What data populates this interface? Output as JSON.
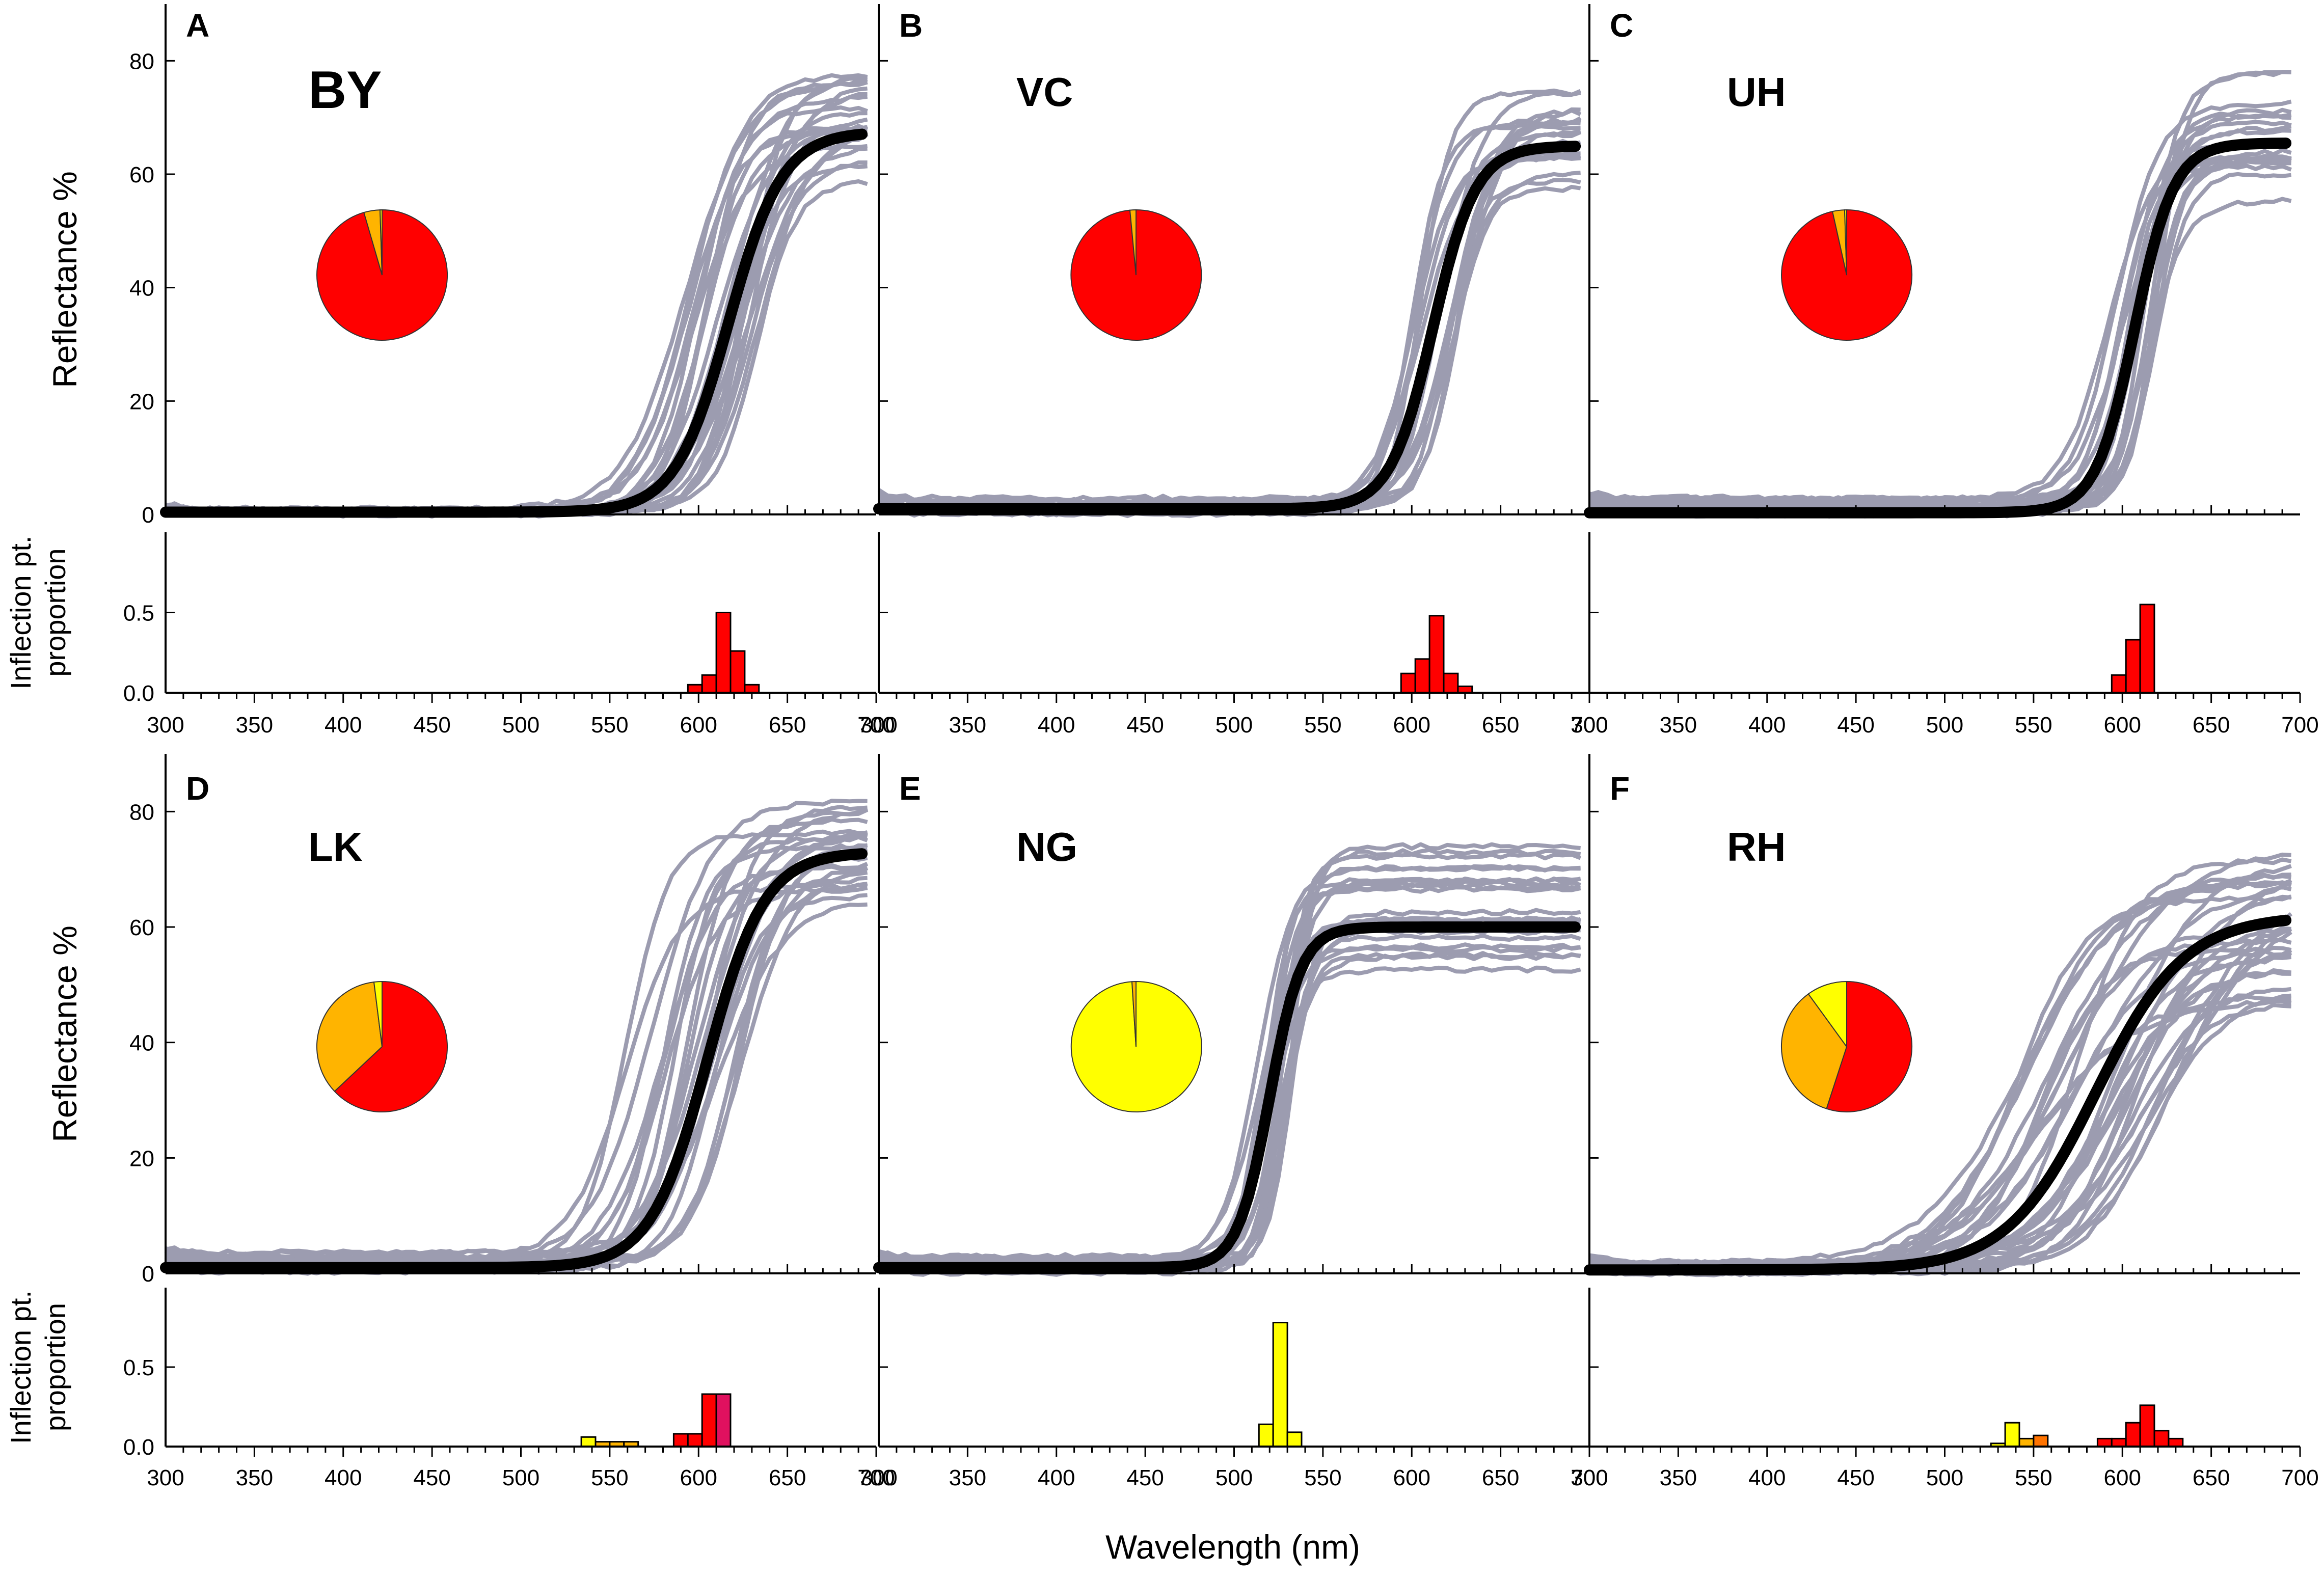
{
  "chart_data": {
    "type": "line",
    "xlabel": "Wavelength (nm)",
    "x_ticks": [
      300,
      350,
      400,
      450,
      500,
      550,
      600,
      650,
      700
    ],
    "xlim": [
      300,
      700
    ],
    "top_ylabel": "Reflectance %",
    "top_ylim": [
      0,
      90
    ],
    "top_yticks": [
      0,
      20,
      40,
      60,
      80
    ],
    "bottom_ylabel_lines": [
      "Inflection pt.",
      "proportion"
    ],
    "bottom_ylim": [
      0,
      1.0
    ],
    "bottom_yticks_labels": [
      "0.0",
      "0.5"
    ],
    "bottom_yticks_values": [
      0,
      0.5
    ],
    "colors": {
      "red": "#ff0000",
      "orange": "#ffb400",
      "yellow": "#ffff00",
      "deep_orange": "#ff7300",
      "pink": "#e0115f",
      "mean_line": "#000000",
      "individual_line": "#9c9cb0"
    },
    "panels": [
      {
        "letter": "A",
        "population": "BY",
        "label_size": "large",
        "mean": {
          "midpoint": 617,
          "scale": 15,
          "min": 0.4,
          "max": 67.5
        },
        "individuals": {
          "count": 22,
          "mid_range": [
            590,
            635
          ],
          "max_range": [
            58,
            78
          ],
          "min_range": [
            0,
            1
          ]
        },
        "pie": [
          {
            "value": 0.955,
            "color": "red"
          },
          {
            "value": 0.04,
            "color": "orange"
          },
          {
            "value": 0.005,
            "color": "yellow"
          }
        ],
        "histogram": [
          {
            "x": 594,
            "value": 0.05,
            "color": "red"
          },
          {
            "x": 602,
            "value": 0.11,
            "color": "red"
          },
          {
            "x": 610,
            "value": 0.5,
            "color": "red"
          },
          {
            "x": 618,
            "value": 0.26,
            "color": "red"
          },
          {
            "x": 626,
            "value": 0.05,
            "color": "red"
          }
        ]
      },
      {
        "letter": "B",
        "population": "VC",
        "label_size": "normal",
        "mean": {
          "midpoint": 612,
          "scale": 12,
          "min": 1.0,
          "max": 65
        },
        "individuals": {
          "count": 18,
          "mid_range": [
            595,
            628
          ],
          "max_range": [
            56,
            75
          ],
          "min_range": [
            0,
            3
          ]
        },
        "pie": [
          {
            "value": 0.985,
            "color": "red"
          },
          {
            "value": 0.015,
            "color": "orange"
          }
        ],
        "histogram": [
          {
            "x": 594,
            "value": 0.12,
            "color": "red"
          },
          {
            "x": 602,
            "value": 0.21,
            "color": "red"
          },
          {
            "x": 610,
            "value": 0.48,
            "color": "red"
          },
          {
            "x": 618,
            "value": 0.12,
            "color": "red"
          },
          {
            "x": 626,
            "value": 0.04,
            "color": "red"
          }
        ]
      },
      {
        "letter": "C",
        "population": "UH",
        "label_size": "normal",
        "mean": {
          "midpoint": 607,
          "scale": 11,
          "min": 0.3,
          "max": 65.5
        },
        "individuals": {
          "count": 20,
          "mid_range": [
            592,
            622
          ],
          "max_range": [
            55,
            79
          ],
          "min_range": [
            0,
            3
          ]
        },
        "pie": [
          {
            "value": 0.965,
            "color": "red"
          },
          {
            "value": 0.03,
            "color": "orange"
          },
          {
            "value": 0.005,
            "color": "yellow"
          }
        ],
        "histogram": [
          {
            "x": 594,
            "value": 0.11,
            "color": "red"
          },
          {
            "x": 602,
            "value": 0.33,
            "color": "red"
          },
          {
            "x": 610,
            "value": 0.55,
            "color": "red"
          }
        ]
      },
      {
        "letter": "D",
        "population": "LK",
        "label_size": "normal",
        "mean": {
          "midpoint": 605,
          "scale": 16,
          "min": 1.0,
          "max": 73
        },
        "individuals": {
          "count": 24,
          "mid_range": [
            558,
            625
          ],
          "max_range": [
            64,
            82
          ],
          "min_range": [
            0,
            4
          ]
        },
        "pie": [
          {
            "value": 0.63,
            "color": "red"
          },
          {
            "value": 0.35,
            "color": "orange"
          },
          {
            "value": 0.02,
            "color": "yellow"
          }
        ],
        "histogram": [
          {
            "x": 534,
            "value": 0.06,
            "color": "yellow"
          },
          {
            "x": 542,
            "value": 0.03,
            "color": "orange"
          },
          {
            "x": 550,
            "value": 0.03,
            "color": "orange"
          },
          {
            "x": 558,
            "value": 0.03,
            "color": "orange"
          },
          {
            "x": 586,
            "value": 0.08,
            "color": "red"
          },
          {
            "x": 594,
            "value": 0.08,
            "color": "red"
          },
          {
            "x": 602,
            "value": 0.33,
            "color": "red"
          },
          {
            "x": 610,
            "value": 0.33,
            "color": "pink"
          }
        ]
      },
      {
        "letter": "E",
        "population": "NG",
        "label_size": "normal",
        "mean": {
          "midpoint": 520,
          "scale": 9,
          "min": 1.0,
          "max": 60
        },
        "individuals": {
          "count": 22,
          "mid_range": [
            512,
            532
          ],
          "max_range": [
            52,
            74
          ],
          "min_range": [
            0,
            3
          ]
        },
        "pie": [
          {
            "value": 0.99,
            "color": "yellow"
          },
          {
            "value": 0.01,
            "color": "orange"
          }
        ],
        "histogram": [
          {
            "x": 514,
            "value": 0.14,
            "color": "yellow"
          },
          {
            "x": 522,
            "value": 0.78,
            "color": "yellow"
          },
          {
            "x": 530,
            "value": 0.09,
            "color": "yellow"
          }
        ]
      },
      {
        "letter": "F",
        "population": "RH",
        "label_size": "normal",
        "mean": {
          "midpoint": 585,
          "scale": 25,
          "min": 0.6,
          "max": 62
        },
        "individuals": {
          "count": 30,
          "mid_range": [
            540,
            630
          ],
          "max_range": [
            47,
            74
          ],
          "min_range": [
            0,
            2
          ]
        },
        "pie": [
          {
            "value": 0.55,
            "color": "red"
          },
          {
            "value": 0.35,
            "color": "orange"
          },
          {
            "value": 0.1,
            "color": "yellow"
          }
        ],
        "histogram": [
          {
            "x": 526,
            "value": 0.02,
            "color": "yellow"
          },
          {
            "x": 534,
            "value": 0.15,
            "color": "yellow"
          },
          {
            "x": 542,
            "value": 0.05,
            "color": "orange"
          },
          {
            "x": 550,
            "value": 0.07,
            "color": "deep_orange"
          },
          {
            "x": 586,
            "value": 0.05,
            "color": "red"
          },
          {
            "x": 594,
            "value": 0.05,
            "color": "red"
          },
          {
            "x": 602,
            "value": 0.15,
            "color": "red"
          },
          {
            "x": 610,
            "value": 0.26,
            "color": "red"
          },
          {
            "x": 618,
            "value": 0.1,
            "color": "red"
          },
          {
            "x": 626,
            "value": 0.05,
            "color": "red"
          }
        ]
      }
    ]
  }
}
